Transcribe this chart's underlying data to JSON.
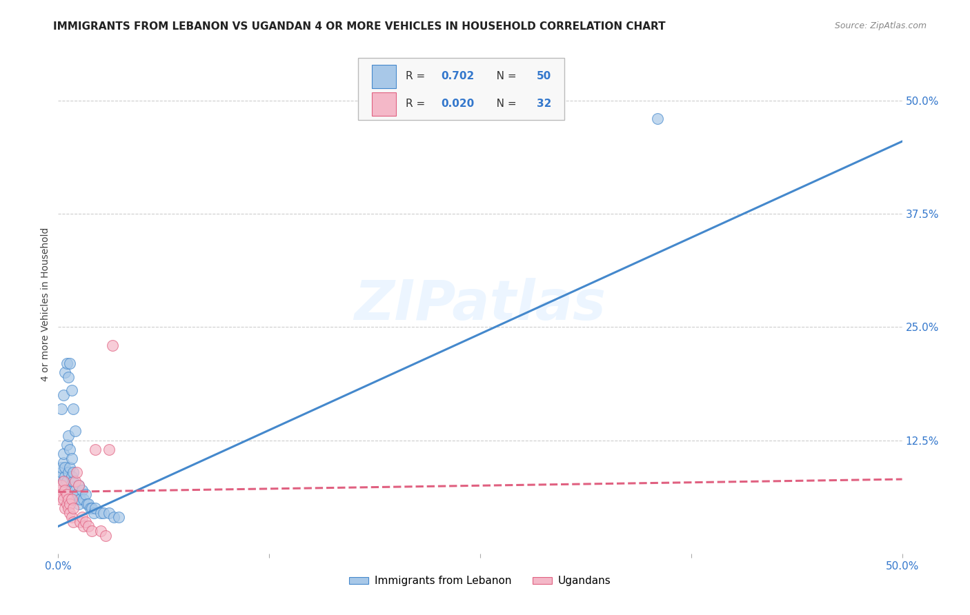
{
  "title": "IMMIGRANTS FROM LEBANON VS UGANDAN 4 OR MORE VEHICLES IN HOUSEHOLD CORRELATION CHART",
  "source": "Source: ZipAtlas.com",
  "ylabel": "4 or more Vehicles in Household",
  "xlim": [
    0.0,
    0.5
  ],
  "ylim": [
    0.0,
    0.55
  ],
  "xticks": [
    0.0,
    0.125,
    0.25,
    0.375,
    0.5
  ],
  "xticklabels": [
    "0.0%",
    "",
    "",
    "",
    "50.0%"
  ],
  "yticks_right": [
    0.0,
    0.125,
    0.25,
    0.375,
    0.5
  ],
  "yticklabels_right": [
    "",
    "12.5%",
    "25.0%",
    "37.5%",
    "50.0%"
  ],
  "legend_label1": "Immigrants from Lebanon",
  "legend_label2": "Ugandans",
  "R1": "0.702",
  "N1": "50",
  "R2": "0.020",
  "N2": "32",
  "blue_color": "#a8c8e8",
  "pink_color": "#f4b8c8",
  "blue_line_color": "#4488cc",
  "pink_line_color": "#e06080",
  "watermark": "ZIPatlas",
  "blue_scatter_x": [
    0.001,
    0.002,
    0.002,
    0.003,
    0.003,
    0.003,
    0.004,
    0.004,
    0.004,
    0.005,
    0.005,
    0.005,
    0.006,
    0.006,
    0.007,
    0.007,
    0.008,
    0.008,
    0.009,
    0.009,
    0.01,
    0.01,
    0.011,
    0.012,
    0.012,
    0.013,
    0.014,
    0.015,
    0.016,
    0.017,
    0.018,
    0.019,
    0.02,
    0.021,
    0.022,
    0.025,
    0.027,
    0.03,
    0.033,
    0.036,
    0.002,
    0.003,
    0.004,
    0.005,
    0.006,
    0.007,
    0.008,
    0.009,
    0.01,
    0.355
  ],
  "blue_scatter_y": [
    0.085,
    0.09,
    0.095,
    0.08,
    0.1,
    0.11,
    0.075,
    0.085,
    0.095,
    0.07,
    0.08,
    0.12,
    0.09,
    0.13,
    0.095,
    0.115,
    0.085,
    0.105,
    0.08,
    0.09,
    0.06,
    0.07,
    0.065,
    0.055,
    0.075,
    0.06,
    0.07,
    0.06,
    0.065,
    0.055,
    0.055,
    0.05,
    0.05,
    0.045,
    0.05,
    0.045,
    0.045,
    0.045,
    0.04,
    0.04,
    0.16,
    0.175,
    0.2,
    0.21,
    0.195,
    0.21,
    0.18,
    0.16,
    0.135,
    0.48
  ],
  "pink_scatter_x": [
    0.001,
    0.001,
    0.002,
    0.002,
    0.003,
    0.003,
    0.004,
    0.004,
    0.005,
    0.005,
    0.006,
    0.006,
    0.007,
    0.007,
    0.008,
    0.008,
    0.009,
    0.009,
    0.01,
    0.011,
    0.012,
    0.013,
    0.014,
    0.015,
    0.016,
    0.018,
    0.02,
    0.022,
    0.025,
    0.028,
    0.03,
    0.032
  ],
  "pink_scatter_y": [
    0.07,
    0.06,
    0.075,
    0.065,
    0.08,
    0.06,
    0.07,
    0.05,
    0.065,
    0.055,
    0.06,
    0.05,
    0.055,
    0.045,
    0.06,
    0.04,
    0.05,
    0.035,
    0.08,
    0.09,
    0.075,
    0.035,
    0.04,
    0.03,
    0.035,
    0.03,
    0.025,
    0.115,
    0.025,
    0.02,
    0.115,
    0.23
  ],
  "blue_line_x0": 0.0,
  "blue_line_x1": 0.5,
  "blue_line_y0": 0.03,
  "blue_line_y1": 0.455,
  "pink_line_x0": 0.0,
  "pink_line_x1": 0.5,
  "pink_line_y0": 0.068,
  "pink_line_y1": 0.082,
  "grid_color": "#cccccc",
  "background_color": "#ffffff",
  "title_fontsize": 11,
  "axis_label_fontsize": 10,
  "tick_fontsize": 11
}
